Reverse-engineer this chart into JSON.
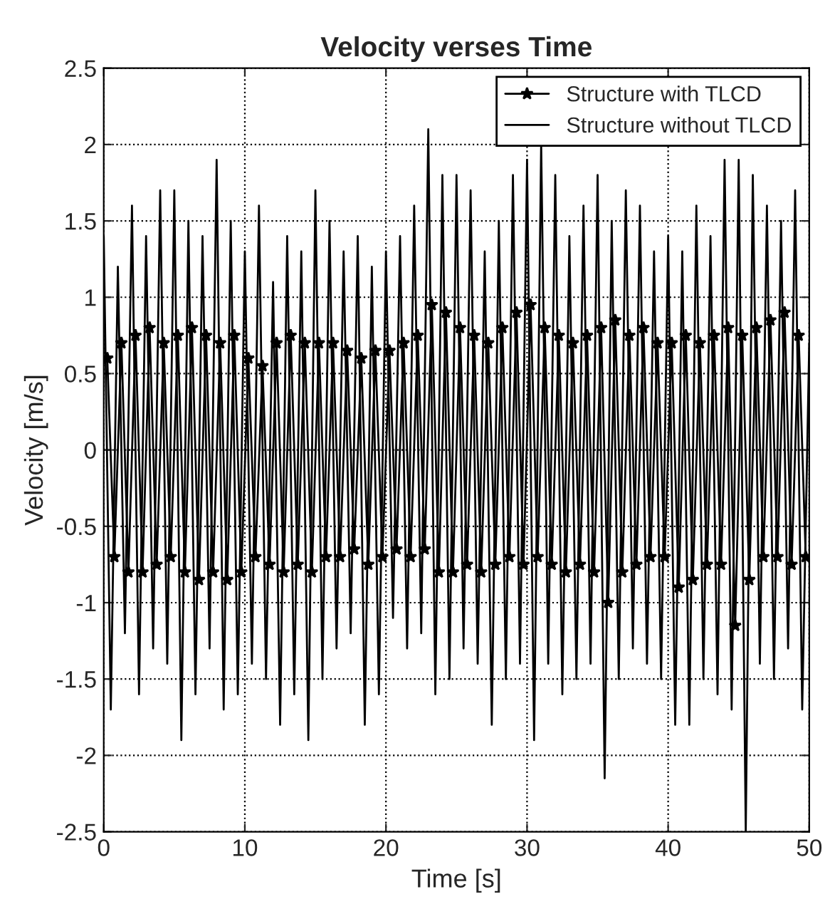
{
  "chart_data": {
    "type": "line",
    "title": "Velocity verses Time",
    "xlabel": "Time [s]",
    "ylabel": "Velocity [m/s]",
    "xlim": [
      0,
      50
    ],
    "xticks": [
      0,
      10,
      20,
      30,
      40,
      50
    ],
    "ylim": [
      -2.5,
      2.5
    ],
    "yticks": [
      -2.5,
      -2,
      -1.5,
      -1,
      -0.5,
      0,
      0.5,
      1,
      1.5,
      2,
      2.5
    ],
    "grid": true,
    "legend": "top right",
    "series": [
      {
        "name": "Structure with TLCD",
        "color": "#000000",
        "marker": "star",
        "line_style": "solid",
        "x": [
          0.25,
          0.75,
          1.25,
          1.75,
          2.25,
          2.75,
          3.25,
          3.75,
          4.25,
          4.75,
          5.25,
          5.75,
          6.25,
          6.75,
          7.25,
          7.75,
          8.25,
          8.75,
          9.25,
          9.75,
          10.25,
          10.75,
          11.25,
          11.75,
          12.25,
          12.75,
          13.25,
          13.75,
          14.25,
          14.75,
          15.25,
          15.75,
          16.25,
          16.75,
          17.25,
          17.75,
          18.25,
          18.75,
          19.25,
          19.75,
          20.25,
          20.75,
          21.25,
          21.75,
          22.25,
          22.75,
          23.25,
          23.75,
          24.25,
          24.75,
          25.25,
          25.75,
          26.25,
          26.75,
          27.25,
          27.75,
          28.25,
          28.75,
          29.25,
          29.75,
          30.25,
          30.75,
          31.25,
          31.75,
          32.25,
          32.75,
          33.25,
          33.75,
          34.25,
          34.75,
          35.25,
          35.75,
          36.25,
          36.75,
          37.25,
          37.75,
          38.25,
          38.75,
          39.25,
          39.75,
          40.25,
          40.75,
          41.25,
          41.75,
          42.25,
          42.75,
          43.25,
          43.75,
          44.25,
          44.75,
          45.25,
          45.75,
          46.25,
          46.75,
          47.25,
          47.75,
          48.25,
          48.75,
          49.25,
          49.75
        ],
        "values": [
          0.6,
          -0.7,
          0.7,
          -0.8,
          0.75,
          -0.8,
          0.8,
          -0.75,
          0.7,
          -0.7,
          0.75,
          -0.8,
          0.8,
          -0.85,
          0.75,
          -0.8,
          0.7,
          -0.85,
          0.75,
          -0.8,
          0.6,
          -0.7,
          0.55,
          -0.75,
          0.7,
          -0.8,
          0.75,
          -0.75,
          0.7,
          -0.8,
          0.7,
          -0.7,
          0.7,
          -0.7,
          0.65,
          -0.65,
          0.6,
          -0.75,
          0.65,
          -0.7,
          0.65,
          -0.65,
          0.7,
          -0.7,
          0.75,
          -0.65,
          0.95,
          -0.8,
          0.9,
          -0.8,
          0.8,
          -0.75,
          0.75,
          -0.8,
          0.7,
          -0.75,
          0.8,
          -0.7,
          0.9,
          -0.75,
          0.95,
          -0.7,
          0.8,
          -0.75,
          0.75,
          -0.8,
          0.7,
          -0.75,
          0.75,
          -0.8,
          0.8,
          -1.0,
          0.85,
          -0.8,
          0.75,
          -0.75,
          0.8,
          -0.7,
          0.7,
          -0.7,
          0.7,
          -0.9,
          0.75,
          -0.85,
          0.7,
          -0.75,
          0.75,
          -0.75,
          0.8,
          -1.15,
          0.75,
          -0.85,
          0.8,
          -0.7,
          0.85,
          -0.7,
          0.9,
          -0.75,
          0.75,
          -0.7
        ]
      },
      {
        "name": "Structure without TLCD",
        "color": "#000000",
        "marker": "none",
        "line_style": "solid",
        "x": [
          0,
          0.5,
          1,
          1.5,
          2,
          2.5,
          3,
          3.5,
          4,
          4.5,
          5,
          5.5,
          6,
          6.5,
          7,
          7.5,
          8,
          8.5,
          9,
          9.5,
          10,
          10.5,
          11,
          11.5,
          12,
          12.5,
          13,
          13.5,
          14,
          14.5,
          15,
          15.5,
          16,
          16.5,
          17,
          17.5,
          18,
          18.5,
          19,
          19.5,
          20,
          20.5,
          21,
          21.5,
          22,
          22.5,
          23,
          23.5,
          24,
          24.5,
          25,
          25.5,
          26,
          26.5,
          27,
          27.5,
          28,
          28.5,
          29,
          29.5,
          30,
          30.5,
          31,
          31.5,
          32,
          32.5,
          33,
          33.5,
          34,
          34.5,
          35,
          35.5,
          36,
          36.5,
          37,
          37.5,
          38,
          38.5,
          39,
          39.5,
          40,
          40.5,
          41,
          41.5,
          42,
          42.5,
          43,
          43.5,
          44,
          44.5,
          45,
          45.5,
          46,
          46.5,
          47,
          47.5,
          48,
          48.5,
          49,
          49.5,
          50
        ],
        "values": [
          1.4,
          -1.7,
          1.2,
          -1.2,
          1.6,
          -1.6,
          1.4,
          -1.3,
          1.7,
          -1.4,
          1.7,
          -1.9,
          1.5,
          -1.6,
          1.4,
          -1.3,
          1.9,
          -1.7,
          1.5,
          -1.6,
          1.3,
          -1.4,
          1.6,
          -1.5,
          1.1,
          -1.8,
          1.4,
          -1.6,
          1.3,
          -1.9,
          1.7,
          -1.5,
          1.5,
          -1.3,
          1.3,
          -1.2,
          1.4,
          -1.8,
          1.2,
          -1.6,
          1.3,
          -1.1,
          1.4,
          -1.3,
          1.6,
          -1.2,
          2.1,
          -1.6,
          1.8,
          -1.5,
          1.8,
          -1.3,
          1.7,
          -1.4,
          1.3,
          -1.8,
          1.5,
          -1.5,
          1.8,
          -1.4,
          1.9,
          -1.9,
          2.0,
          -1.4,
          1.8,
          -1.6,
          1.4,
          -1.5,
          1.6,
          -1.4,
          1.8,
          -2.15,
          1.5,
          -1.5,
          1.7,
          -1.3,
          1.6,
          -1.4,
          1.3,
          -1.5,
          1.4,
          -1.8,
          1.3,
          -1.8,
          1.6,
          -1.5,
          1.4,
          -1.6,
          1.9,
          -1.7,
          1.9,
          -2.5,
          1.8,
          -1.4,
          1.6,
          -1.5,
          1.5,
          -1.3,
          1.7,
          -1.7,
          0.7
        ]
      }
    ]
  }
}
